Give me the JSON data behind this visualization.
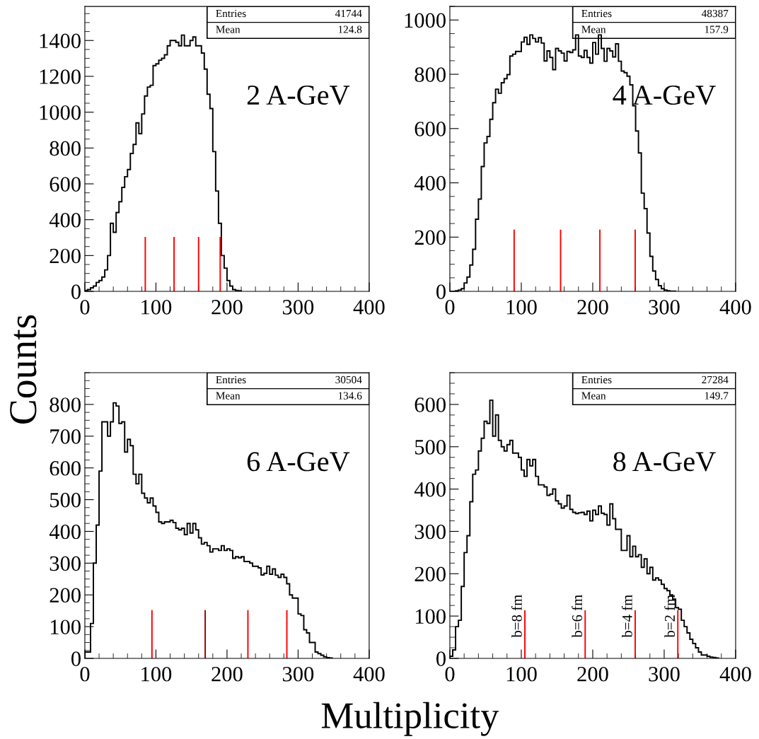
{
  "chart_data": [
    {
      "type": "histogram",
      "ylabel": "Counts",
      "xlim": [
        0,
        400
      ],
      "xticks": [
        0,
        100,
        200,
        300,
        400
      ],
      "ylim": [
        0,
        1590
      ],
      "yticks": [
        0,
        200,
        400,
        600,
        800,
        1000,
        1200,
        1400
      ],
      "color": "#000000",
      "bins": [
        0,
        4,
        8,
        12,
        16,
        20,
        24,
        28,
        32,
        36,
        40,
        44,
        48,
        52,
        56,
        60,
        64,
        68,
        72,
        76,
        80,
        84,
        88,
        92,
        96,
        100,
        104,
        108,
        112,
        116,
        120,
        124,
        128,
        132,
        136,
        140,
        144,
        148,
        152,
        156,
        160,
        164,
        168,
        172,
        176,
        180,
        184,
        188,
        192,
        196,
        200,
        204,
        208,
        212,
        216,
        220
      ],
      "values": [
        5,
        10,
        20,
        30,
        50,
        60,
        80,
        120,
        200,
        380,
        330,
        440,
        500,
        580,
        640,
        680,
        770,
        820,
        940,
        880,
        990,
        1090,
        1140,
        1150,
        1260,
        1270,
        1290,
        1300,
        1320,
        1370,
        1400,
        1400,
        1390,
        1370,
        1430,
        1370,
        1370,
        1400,
        1420,
        1370,
        1370,
        1330,
        1240,
        1100,
        1020,
        780,
        560,
        380,
        200,
        130,
        60,
        30,
        10,
        5,
        3
      ],
      "series": [
        {
          "type": "line",
          "x": [
            85,
            85
          ],
          "values": [
            0,
            300
          ],
          "color": "#ff0000"
        },
        {
          "type": "line",
          "x": [
            125.5,
            125.5
          ],
          "values": [
            0,
            300
          ],
          "color": "#ff0000"
        },
        {
          "type": "line",
          "x": [
            160,
            160
          ],
          "values": [
            0,
            300
          ],
          "color": "#ff0000"
        },
        {
          "type": "line",
          "x": [
            190.4,
            190.4
          ],
          "values": [
            0,
            300
          ],
          "color": "#ff0000"
        }
      ],
      "annotations": [
        "Entries",
        "41744",
        "Mean",
        "124.8",
        "2 A-GeV"
      ]
    },
    {
      "type": "histogram",
      "xlim": [
        0,
        400
      ],
      "xticks": [
        0,
        100,
        200,
        300,
        400
      ],
      "ylim": [
        0,
        1050
      ],
      "yticks": [
        0,
        200,
        400,
        600,
        800,
        1000
      ],
      "color": "#000000",
      "bins": [
        0,
        4,
        8,
        12,
        16,
        20,
        24,
        28,
        32,
        36,
        40,
        44,
        48,
        52,
        56,
        60,
        64,
        68,
        72,
        76,
        80,
        84,
        88,
        92,
        96,
        100,
        104,
        108,
        112,
        116,
        120,
        124,
        128,
        132,
        136,
        140,
        144,
        148,
        152,
        156,
        160,
        164,
        168,
        172,
        176,
        180,
        184,
        188,
        192,
        196,
        200,
        204,
        208,
        212,
        216,
        220,
        224,
        228,
        232,
        236,
        240,
        244,
        248,
        252,
        256,
        260,
        264,
        268,
        272,
        276,
        280,
        284,
        288,
        292,
        296,
        300,
        304,
        308,
        312,
        316
      ],
      "values": [
        0,
        0,
        2,
        5,
        10,
        31,
        53,
        97,
        155,
        266,
        340,
        460,
        547,
        571,
        634,
        695,
        745,
        730,
        769,
        784,
        799,
        867,
        874,
        884,
        884,
        919,
        936,
        910,
        945,
        932,
        919,
        935,
        915,
        849,
        886,
        862,
        817,
        895,
        886,
        878,
        849,
        884,
        880,
        890,
        945,
        867,
        862,
        888,
        862,
        841,
        917,
        874,
        945,
        895,
        848,
        895,
        886,
        864,
        912,
        848,
        812,
        806,
        793,
        761,
        684,
        591,
        510,
        362,
        305,
        215,
        129,
        75,
        44,
        21,
        10,
        5,
        2,
        1,
        1
      ],
      "series": [
        {
          "type": "line",
          "x": [
            90,
            90
          ],
          "values": [
            0,
            225
          ],
          "color": "#ff0000"
        },
        {
          "type": "line",
          "x": [
            155,
            155
          ],
          "values": [
            0,
            225
          ],
          "color": "#ff0000"
        },
        {
          "type": "line",
          "x": [
            210,
            210
          ],
          "values": [
            0,
            225
          ],
          "color": "#ff0000"
        },
        {
          "type": "line",
          "x": [
            259.4,
            259.4
          ],
          "values": [
            0,
            225
          ],
          "color": "#ff0000"
        }
      ],
      "annotations": [
        "Entries",
        "48387",
        "Mean",
        "157.9",
        "4 A-GeV"
      ]
    },
    {
      "type": "histogram",
      "xlabel": "Multiplicity",
      "xlim": [
        0,
        400
      ],
      "xticks": [
        0,
        100,
        200,
        300,
        400
      ],
      "ylim": [
        0,
        900
      ],
      "yticks": [
        0,
        100,
        200,
        300,
        400,
        500,
        600,
        700,
        800
      ],
      "color": "#000000",
      "bins": [
        0,
        4,
        8,
        12,
        16,
        20,
        24,
        28,
        32,
        36,
        40,
        44,
        48,
        52,
        56,
        60,
        64,
        68,
        72,
        76,
        80,
        84,
        88,
        92,
        96,
        100,
        104,
        108,
        112,
        116,
        120,
        124,
        128,
        132,
        136,
        140,
        144,
        148,
        152,
        156,
        160,
        164,
        168,
        172,
        176,
        180,
        184,
        188,
        192,
        196,
        200,
        204,
        208,
        212,
        216,
        220,
        224,
        228,
        232,
        236,
        240,
        244,
        248,
        252,
        256,
        260,
        264,
        268,
        272,
        276,
        280,
        284,
        288,
        292,
        296,
        300,
        304,
        308,
        312,
        316,
        320,
        324,
        328,
        332,
        336,
        340,
        344,
        348
      ],
      "values": [
        20,
        20,
        110,
        300,
        420,
        590,
        745,
        745,
        700,
        745,
        805,
        795,
        740,
        745,
        650,
        690,
        670,
        580,
        550,
        580,
        520,
        505,
        490,
        505,
        480,
        460,
        430,
        425,
        430,
        430,
        435,
        428,
        410,
        405,
        410,
        390,
        425,
        395,
        425,
        405,
        380,
        360,
        365,
        355,
        335,
        345,
        345,
        340,
        355,
        340,
        345,
        340,
        315,
        320,
        317,
        320,
        305,
        305,
        300,
        290,
        290,
        285,
        263,
        268,
        290,
        265,
        282,
        262,
        255,
        265,
        255,
        235,
        200,
        190,
        190,
        140,
        135,
        90,
        80,
        50,
        50,
        20,
        15,
        10,
        5,
        2,
        1
      ],
      "series": [
        {
          "type": "line",
          "x": [
            94.4,
            94.4
          ],
          "values": [
            0,
            150
          ],
          "color": "#ff0000"
        },
        {
          "type": "line",
          "x": [
            169.3,
            169.3
          ],
          "values": [
            0,
            150
          ],
          "color": "#990000"
        },
        {
          "type": "line",
          "x": [
            229.4,
            229.4
          ],
          "values": [
            0,
            150
          ],
          "color": "#ff0000"
        },
        {
          "type": "line",
          "x": [
            284.2,
            284.2
          ],
          "values": [
            0,
            150
          ],
          "color": "#ff0000"
        }
      ],
      "annotations": [
        "Entries",
        "30504",
        "Mean",
        "134.6",
        "6 A-GeV"
      ]
    },
    {
      "type": "histogram",
      "xlim": [
        0,
        400
      ],
      "xticks": [
        0,
        100,
        200,
        300,
        400
      ],
      "ylim": [
        0,
        675
      ],
      "yticks": [
        0,
        100,
        200,
        300,
        400,
        500,
        600
      ],
      "color": "#000000",
      "bins": [
        0,
        4,
        8,
        12,
        16,
        20,
        24,
        28,
        32,
        36,
        40,
        44,
        48,
        52,
        56,
        60,
        64,
        68,
        72,
        76,
        80,
        84,
        88,
        92,
        96,
        100,
        104,
        108,
        112,
        116,
        120,
        124,
        128,
        132,
        136,
        140,
        144,
        148,
        152,
        156,
        160,
        164,
        168,
        172,
        176,
        180,
        184,
        188,
        192,
        196,
        200,
        204,
        208,
        212,
        216,
        220,
        224,
        228,
        232,
        236,
        240,
        244,
        248,
        252,
        256,
        260,
        264,
        268,
        272,
        276,
        280,
        284,
        288,
        292,
        296,
        300,
        304,
        308,
        312,
        316,
        320,
        324,
        328,
        332,
        336,
        340,
        344,
        348,
        352,
        356,
        360,
        364,
        368,
        372,
        376
      ],
      "values": [
        5,
        20,
        75,
        90,
        170,
        250,
        290,
        370,
        435,
        445,
        490,
        520,
        560,
        555,
        610,
        525,
        575,
        515,
        500,
        490,
        505,
        515,
        485,
        485,
        475,
        445,
        430,
        470,
        455,
        470,
        430,
        410,
        410,
        405,
        385,
        388,
        400,
        372,
        365,
        355,
        360,
        385,
        352,
        345,
        342,
        344,
        345,
        340,
        348,
        325,
        350,
        340,
        360,
        343,
        340,
        315,
        365,
        330,
        305,
        305,
        255,
        255,
        290,
        240,
        265,
        240,
        245,
        215,
        235,
        200,
        215,
        185,
        190,
        185,
        175,
        165,
        160,
        150,
        140,
        120,
        116,
        90,
        75,
        60,
        45,
        35,
        25,
        15,
        8,
        8,
        5,
        3,
        2,
        1
      ],
      "series": [
        {
          "type": "line",
          "x": [
            105,
            105
          ],
          "values": [
            0,
            112
          ],
          "color": "#ff0000"
        },
        {
          "type": "line",
          "x": [
            189.4,
            189.4
          ],
          "values": [
            0,
            112
          ],
          "color": "#ff0000"
        },
        {
          "type": "line",
          "x": [
            259.4,
            259.4
          ],
          "values": [
            0,
            112
          ],
          "color": "#ff0000"
        },
        {
          "type": "line",
          "x": [
            319.1,
            319.1
          ],
          "values": [
            0,
            112
          ],
          "color": "#ff0000"
        }
      ],
      "annotations": [
        "Entries",
        "27284",
        "Mean",
        "149.7",
        "8 A-GeV",
        {
          "text": "b=8 fm",
          "x": 105,
          "y": 100
        },
        {
          "text": "b=6 fm",
          "x": 189.4,
          "y": 100
        },
        {
          "text": "b=4 fm",
          "x": 259.4,
          "y": 100
        },
        {
          "text": "b=2 fm",
          "x": 319.1,
          "y": 100
        }
      ]
    }
  ]
}
